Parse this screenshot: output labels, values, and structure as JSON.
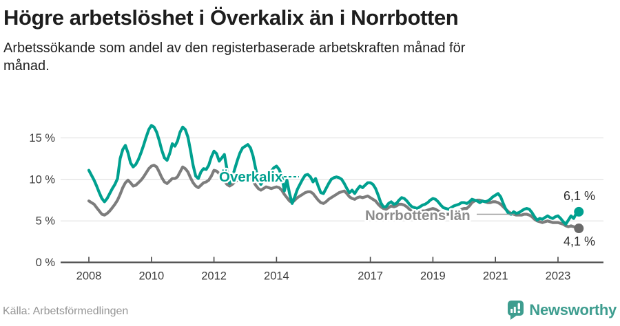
{
  "colors": {
    "overkalix_line": "#00A08F",
    "norrbotten_line": "#7d7d7d",
    "norrbotten_label": "#8c8c8c",
    "overkalix_dot": "#00A08F",
    "norrbotten_dot": "#6a6a6a",
    "grid": "#e2e2e2",
    "axis": "#4a4a4a",
    "brand_teal": "#3E9D8F",
    "end_label_text": "#2b2b2b"
  },
  "footer": {
    "brand": "Newsworthy",
    "brand_icon": "newsworthy-bubble-chart-icon"
  },
  "chart_data": {
    "type": "line",
    "title": "Högre arbetslöshet i Överkalix än i Norrbotten",
    "subtitle_lines": [
      "Arbetssökande som andel av den registerbaserade arbetskraften månad för",
      "månad."
    ],
    "source": "Källa: Arbetsförmedlingen",
    "frequency": "monthly",
    "x_start": "2008-01",
    "x_end": "2023-09",
    "ylim": [
      0,
      17
    ],
    "grid": "horizontal",
    "legend_position": "inline-labels",
    "ytick_values": [
      0,
      5,
      10,
      15
    ],
    "yticklabels": [
      "0 %",
      "5 %",
      "10 %",
      "15 %"
    ],
    "xticks": [
      {
        "year": 2008,
        "label": "2008"
      },
      {
        "year": 2010,
        "label": "2010"
      },
      {
        "year": 2012,
        "label": "2012"
      },
      {
        "year": 2014,
        "label": "2014"
      },
      {
        "year": 2017,
        "label": "2017"
      },
      {
        "year": 2019,
        "label": "2019"
      },
      {
        "year": 2021,
        "label": "2021"
      },
      {
        "year": 2023,
        "label": "2023"
      }
    ],
    "series": [
      {
        "id": "overkalix",
        "name": "Överkalix",
        "color": "#00A08F",
        "label_color": "#00A08F",
        "dot_color": "#00A08F",
        "end_label": "6,1 %",
        "end_value": 6.1,
        "values": [
          11.1,
          10.5,
          9.9,
          9.2,
          8.4,
          7.7,
          7.3,
          7.7,
          8.3,
          8.9,
          9.4,
          10.1,
          12.5,
          13.6,
          14.1,
          13.2,
          12.0,
          11.5,
          11.8,
          12.4,
          13.2,
          14.1,
          15.1,
          16.0,
          16.5,
          16.3,
          15.7,
          14.7,
          13.5,
          12.6,
          12.3,
          13.1,
          14.3,
          14.0,
          14.6,
          15.7,
          16.3,
          16.0,
          15.1,
          13.5,
          11.7,
          10.4,
          10.1,
          10.9,
          11.3,
          11.2,
          11.7,
          12.7,
          13.4,
          13.1,
          12.2,
          12.6,
          13.0,
          11.2,
          9.5,
          10.2,
          11.3,
          12.3,
          13.2,
          13.8,
          14.0,
          14.2,
          13.8,
          12.8,
          11.3,
          10.0,
          9.4,
          9.9,
          10.4,
          10.7,
          11.0,
          11.4,
          11.6,
          11.2,
          10.4,
          8.6,
          9.9,
          8.3,
          7.1,
          7.9,
          8.8,
          9.4,
          10.0,
          10.5,
          10.6,
          10.3,
          9.7,
          10.1,
          9.2,
          8.4,
          8.3,
          8.9,
          9.5,
          10.0,
          10.2,
          10.3,
          10.2,
          10.0,
          9.5,
          8.9,
          8.4,
          8.7,
          8.3,
          8.8,
          9.2,
          9.0,
          9.3,
          9.6,
          9.6,
          9.4,
          8.9,
          8.1,
          7.2,
          6.7,
          6.7,
          7.1,
          7.3,
          7.0,
          7.1,
          7.5,
          7.8,
          7.7,
          7.4,
          7.0,
          6.7,
          6.6,
          6.5,
          6.7,
          6.9,
          7.0,
          7.2,
          7.5,
          7.7,
          7.6,
          7.3,
          6.9,
          6.6,
          6.5,
          6.4,
          6.6,
          6.8,
          6.9,
          7.0,
          7.2,
          7.2,
          7.1,
          7.3,
          7.6,
          7.5,
          7.4,
          7.2,
          7.4,
          7.3,
          7.4,
          7.6,
          7.9,
          8.1,
          8.3,
          7.9,
          7.1,
          6.4,
          5.9,
          5.8,
          6.1,
          5.9,
          6.0,
          6.2,
          6.4,
          6.5,
          6.4,
          6.0,
          5.5,
          5.1,
          5.3,
          5.2,
          5.4,
          5.6,
          5.4,
          5.3,
          5.5,
          5.6,
          5.3,
          4.9,
          4.6,
          5.1,
          5.6,
          5.3,
          5.9,
          6.1
        ]
      },
      {
        "id": "norrbotten",
        "name": "Norrbottens län",
        "color": "#7d7d7d",
        "label_color": "#8c8c8c",
        "dot_color": "#6a6a6a",
        "end_label": "4,1 %",
        "end_value": 4.1,
        "values": [
          7.4,
          7.2,
          7.0,
          6.6,
          6.2,
          5.8,
          5.7,
          5.9,
          6.2,
          6.6,
          7.0,
          7.5,
          8.2,
          9.0,
          9.6,
          9.9,
          9.6,
          9.2,
          9.3,
          9.6,
          9.9,
          10.3,
          10.8,
          11.3,
          11.6,
          11.7,
          11.5,
          10.9,
          10.2,
          9.7,
          9.5,
          9.8,
          10.1,
          10.1,
          10.3,
          10.9,
          11.5,
          11.3,
          10.9,
          10.2,
          9.6,
          9.2,
          9.0,
          9.3,
          9.6,
          9.7,
          9.9,
          10.4,
          11.1,
          11.0,
          10.7,
          10.2,
          9.8,
          9.4,
          9.2,
          9.4,
          9.7,
          9.9,
          10.1,
          10.3,
          10.4,
          10.4,
          10.2,
          9.8,
          9.3,
          8.9,
          8.7,
          8.9,
          9.1,
          9.0,
          8.9,
          9.0,
          9.1,
          9.0,
          8.7,
          8.2,
          7.8,
          7.4,
          7.2,
          7.5,
          7.8,
          8.0,
          8.2,
          8.4,
          8.5,
          8.5,
          8.3,
          7.9,
          7.5,
          7.2,
          7.1,
          7.3,
          7.6,
          7.8,
          8.0,
          8.2,
          8.4,
          8.5,
          8.6,
          8.3,
          7.9,
          7.7,
          7.6,
          7.8,
          7.9,
          7.8,
          7.9,
          8.0,
          7.8,
          7.6,
          7.4,
          7.0,
          6.7,
          6.5,
          6.4,
          6.6,
          6.8,
          6.7,
          6.8,
          7.0,
          7.0,
          6.9,
          6.7,
          6.4,
          6.1,
          6.0,
          5.9,
          6.1,
          6.2,
          6.2,
          6.3,
          6.4,
          6.5,
          6.4,
          6.2,
          6.0,
          5.8,
          5.8,
          5.8,
          5.9,
          6.0,
          6.1,
          6.2,
          6.4,
          6.5,
          6.5,
          6.8,
          7.2,
          7.4,
          7.5,
          7.5,
          7.4,
          7.3,
          7.2,
          7.2,
          7.3,
          7.3,
          7.2,
          7.0,
          6.7,
          6.4,
          6.1,
          5.9,
          5.8,
          5.7,
          5.7,
          5.7,
          5.8,
          5.8,
          5.7,
          5.5,
          5.2,
          5.0,
          4.9,
          4.8,
          4.9,
          5.0,
          4.9,
          4.8,
          4.8,
          4.8,
          4.7,
          4.6,
          4.4,
          4.3,
          4.4,
          4.3,
          4.2,
          4.1
        ]
      }
    ]
  }
}
